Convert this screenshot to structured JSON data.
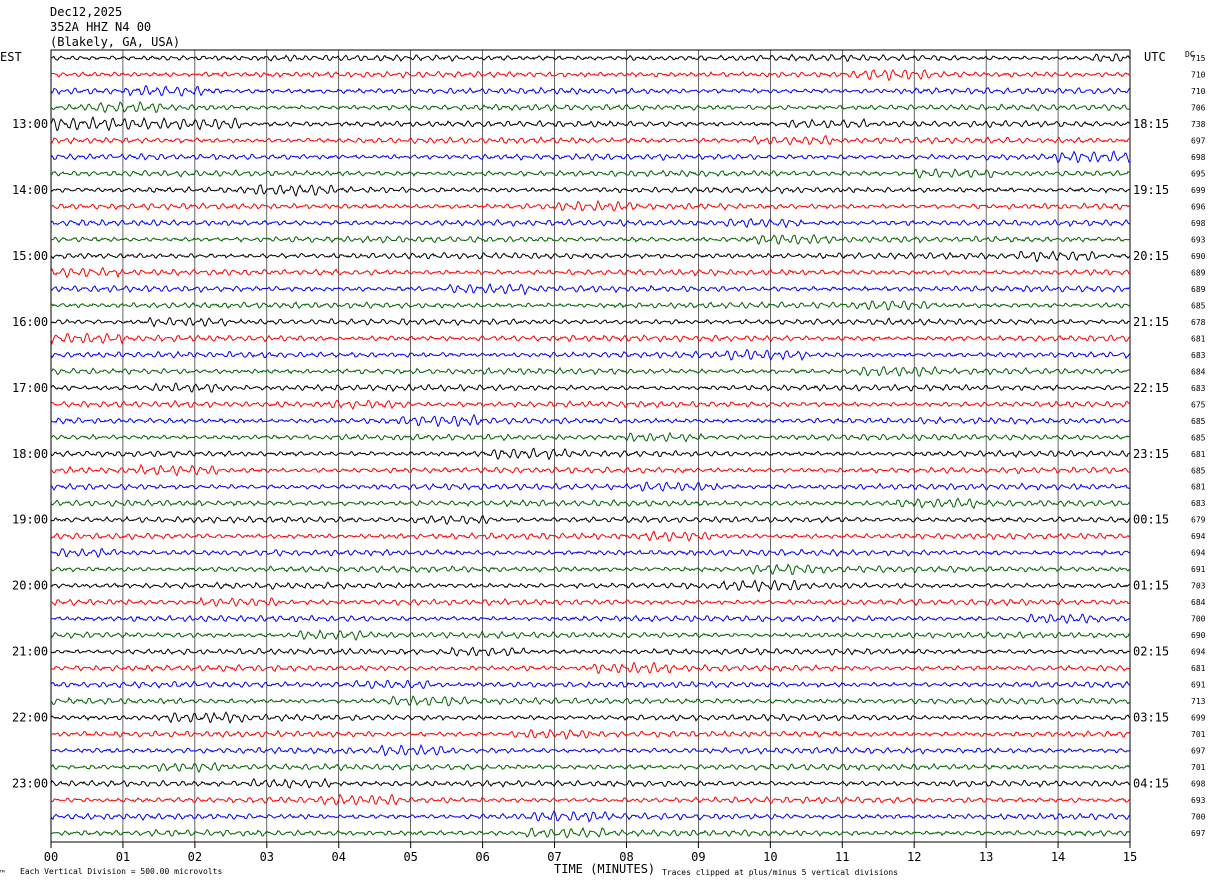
{
  "header": {
    "line1": "Dec12,2025",
    "line2": "352A HHZ N4 00",
    "line3": "(Blakely, GA, USA)"
  },
  "left_tz": "EST",
  "right_tz": "UTC",
  "dc_header": "DC",
  "footer": {
    "scale": "Each Vertical Division =  500.00 microvolts",
    "clip": "Traces clipped at plus/minus 5 vertical divisions"
  },
  "chart_data": {
    "type": "line",
    "xlabel": "TIME (MINUTES)",
    "x_ticks": [
      "00",
      "01",
      "02",
      "03",
      "04",
      "05",
      "06",
      "07",
      "08",
      "09",
      "10",
      "11",
      "12",
      "13",
      "14",
      "15"
    ],
    "xlim": [
      0,
      15
    ],
    "left_hour_labels": [
      "13:00",
      "14:00",
      "15:00",
      "16:00",
      "17:00",
      "18:00",
      "19:00",
      "20:00",
      "21:00",
      "22:00",
      "23:00"
    ],
    "right_hour_labels": [
      "18:15",
      "19:15",
      "20:15",
      "21:15",
      "22:15",
      "23:15",
      "00:15",
      "01:15",
      "02:15",
      "03:15",
      "04:15"
    ],
    "trace_colors": [
      "#000000",
      "#ff0000",
      "#0000ff",
      "#006400"
    ],
    "dc_offsets": [
      "715",
      "710",
      "710",
      "706",
      "738",
      "697",
      "698",
      "695",
      "699",
      "696",
      "698",
      "693",
      "690",
      "689",
      "689",
      "685",
      "678",
      "681",
      "683",
      "684",
      "683",
      "675",
      "685",
      "685",
      "681",
      "685",
      "681",
      "683",
      "679",
      "694",
      "694",
      "691",
      "703",
      "684",
      "700",
      "690",
      "694",
      "681",
      "691",
      "713",
      "699",
      "701",
      "697",
      "701",
      "698",
      "693",
      "700",
      "697"
    ],
    "grid": true
  }
}
